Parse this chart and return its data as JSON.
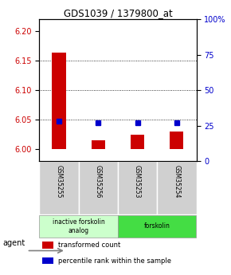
{
  "title": "GDS1039 / 1379800_at",
  "samples": [
    "GSM35255",
    "GSM35256",
    "GSM35253",
    "GSM35254"
  ],
  "bar_values": [
    6.163,
    6.015,
    6.025,
    6.03
  ],
  "bar_baseline": 6.0,
  "percentile_values": [
    28,
    27,
    27,
    27
  ],
  "ylim_left": [
    5.98,
    6.22
  ],
  "ylim_right": [
    0,
    100
  ],
  "yticks_left": [
    6.0,
    6.05,
    6.1,
    6.15,
    6.2
  ],
  "yticks_right": [
    0,
    25,
    50,
    75,
    100
  ],
  "ytick_labels_right": [
    "0",
    "25",
    "50",
    "75",
    "100%"
  ],
  "bar_color": "#cc0000",
  "dot_color": "#0000cc",
  "grid_color": "#000000",
  "agent_label": "agent",
  "groups": [
    {
      "label": "inactive forskolin\nanalog",
      "color": "#ccffcc",
      "start": 0,
      "end": 2
    },
    {
      "label": "forskolin",
      "color": "#44dd44",
      "start": 2,
      "end": 4
    }
  ],
  "legend": [
    {
      "color": "#cc0000",
      "label": "transformed count"
    },
    {
      "color": "#0000cc",
      "label": "percentile rank within the sample"
    }
  ],
  "background_color": "#ffffff",
  "plot_bg": "#ffffff",
  "tick_label_color_left": "#cc0000",
  "tick_label_color_right": "#0000cc"
}
